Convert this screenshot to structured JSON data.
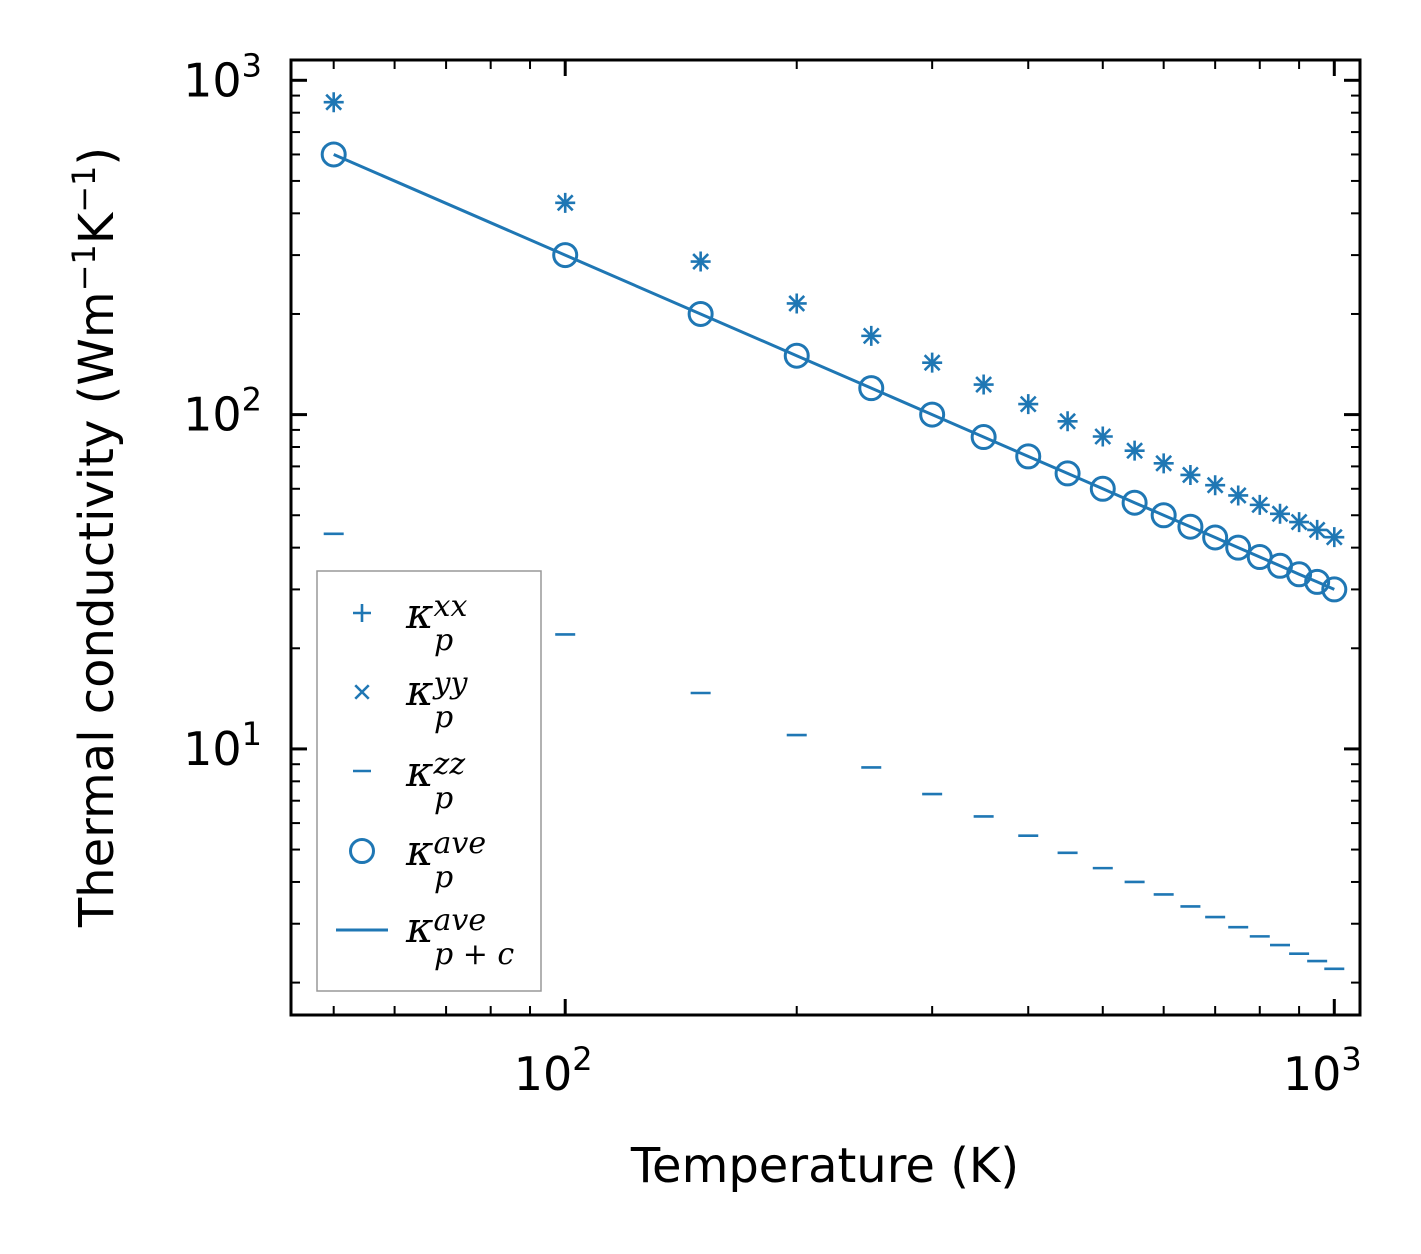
{
  "chart_data": {
    "type": "scatter",
    "scale": {
      "x": "log",
      "y": "log"
    },
    "xlabel": {
      "text": "Temperature (K)"
    },
    "ylabel": {
      "base": "Thermal conductivity (Wm",
      "exp1": "−1",
      "mid": "K",
      "exp2": "−1",
      "end": ")"
    },
    "xlim": [
      44,
      1080
    ],
    "ylim": [
      1.6,
      1150
    ],
    "xticks": [
      {
        "value": 100,
        "base": "10",
        "exp": "2"
      },
      {
        "value": 1000,
        "base": "10",
        "exp": "3"
      }
    ],
    "yticks": [
      {
        "value": 10,
        "base": "10",
        "exp": "1"
      },
      {
        "value": 100,
        "base": "10",
        "exp": "2"
      },
      {
        "value": 1000,
        "base": "10",
        "exp": "3"
      }
    ],
    "color": "#1f77b4",
    "temperatures": [
      50,
      100,
      150,
      200,
      250,
      300,
      350,
      400,
      450,
      500,
      550,
      600,
      650,
      700,
      750,
      800,
      850,
      900,
      950,
      1000
    ],
    "series": [
      {
        "name": "kappa_xx",
        "marker": "plus",
        "values": [
          860,
          430,
          287,
          215,
          172,
          143,
          123,
          107.5,
          95.5,
          86,
          78,
          71.5,
          66,
          61.5,
          57.3,
          53.7,
          50.5,
          47.7,
          45.2,
          43
        ]
      },
      {
        "name": "kappa_yy",
        "marker": "x",
        "values": [
          860,
          430,
          287,
          215,
          172,
          143,
          123,
          107.5,
          95.5,
          86,
          78,
          71.5,
          66,
          61.5,
          57.3,
          53.7,
          50.5,
          47.7,
          45.2,
          43
        ]
      },
      {
        "name": "kappa_zz",
        "marker": "hline",
        "values": [
          44,
          22,
          14.7,
          11,
          8.8,
          7.33,
          6.28,
          5.5,
          4.89,
          4.4,
          4.0,
          3.67,
          3.38,
          3.14,
          2.93,
          2.75,
          2.59,
          2.44,
          2.32,
          2.2
        ]
      },
      {
        "name": "kappa_ave",
        "marker": "circle",
        "values": [
          600,
          300,
          200,
          150,
          120,
          100,
          85.7,
          75,
          66.7,
          60,
          54.5,
          50,
          46.2,
          42.9,
          40,
          37.5,
          35.3,
          33.3,
          31.6,
          30
        ]
      },
      {
        "name": "kappa_ave_pc",
        "marker": "line",
        "values": [
          600,
          300,
          200,
          150,
          120,
          100,
          85.7,
          75,
          66.7,
          60,
          54.5,
          50,
          46.2,
          42.9,
          40,
          37.5,
          35.3,
          33.3,
          31.6,
          30
        ]
      }
    ],
    "legend": {
      "location": "lower-left",
      "entries": [
        {
          "symbol": "kappa",
          "sub": "p",
          "sup": "xx",
          "marker": "plus"
        },
        {
          "symbol": "kappa",
          "sub": "p",
          "sup": "yy",
          "marker": "x"
        },
        {
          "symbol": "kappa",
          "sub": "p",
          "sup": "zz",
          "marker": "hline"
        },
        {
          "symbol": "kappa",
          "sub": "p",
          "sup": "ave",
          "marker": "circle"
        },
        {
          "symbol": "kappa",
          "sub": "p + c",
          "sup": "ave",
          "marker": "line"
        }
      ]
    }
  }
}
